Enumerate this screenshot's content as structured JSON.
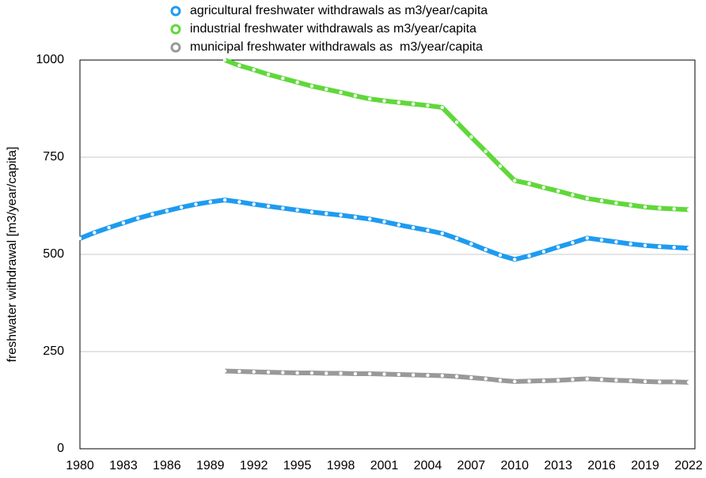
{
  "chart_data": {
    "type": "line",
    "ylabel": "freshwater withdrawal [m3/year/capita]",
    "x": [
      1980,
      1981,
      1982,
      1983,
      1984,
      1985,
      1986,
      1987,
      1988,
      1989,
      1990,
      1991,
      1992,
      1993,
      1994,
      1995,
      1996,
      1997,
      1998,
      1999,
      2000,
      2001,
      2002,
      2003,
      2004,
      2005,
      2006,
      2007,
      2008,
      2009,
      2010,
      2011,
      2012,
      2013,
      2014,
      2015,
      2016,
      2017,
      2018,
      2019,
      2020,
      2021,
      2022
    ],
    "xlim": [
      1980,
      2022
    ],
    "xticks": [
      1980,
      1983,
      1986,
      1989,
      1992,
      1995,
      1998,
      2001,
      2004,
      2007,
      2010,
      2013,
      2016,
      2019,
      2022
    ],
    "ylim": [
      0,
      1000
    ],
    "yticks": [
      0,
      250,
      500,
      750,
      1000
    ],
    "grid": true,
    "series": [
      {
        "name": "agricultural freshwater withdrawals as m3/year/capita",
        "color": "#1e9bf0",
        "values": [
          541,
          556,
          569,
          581,
          593,
          603,
          612,
          621,
          629,
          635,
          640,
          635,
          629,
          624,
          619,
          614,
          609,
          605,
          601,
          596,
          591,
          584,
          576,
          569,
          562,
          554,
          541,
          527,
          512,
          498,
          487,
          496,
          507,
          519,
          530,
          542,
          537,
          532,
          527,
          523,
          520,
          518,
          516
        ]
      },
      {
        "name": "industrial freshwater withdrawals as m3/year/capita",
        "color": "#5fd83a",
        "values": [
          null,
          null,
          null,
          null,
          null,
          null,
          null,
          null,
          null,
          null,
          1000,
          986,
          975,
          963,
          953,
          943,
          933,
          925,
          917,
          908,
          900,
          895,
          891,
          887,
          883,
          878,
          840,
          802,
          765,
          727,
          690,
          682,
          672,
          663,
          653,
          644,
          638,
          632,
          627,
          622,
          619,
          617,
          615
        ]
      },
      {
        "name": "municipal freshwater withdrawals as  m3/year/capita",
        "color": "#999999",
        "values": [
          null,
          null,
          null,
          null,
          null,
          null,
          null,
          null,
          null,
          null,
          200,
          199,
          198,
          197,
          196,
          195,
          195,
          194,
          194,
          193,
          193,
          192,
          191,
          190,
          189,
          188,
          186,
          183,
          180,
          176,
          173,
          174,
          175,
          176,
          178,
          180,
          178,
          176,
          175,
          173,
          172,
          172,
          171
        ]
      }
    ]
  }
}
